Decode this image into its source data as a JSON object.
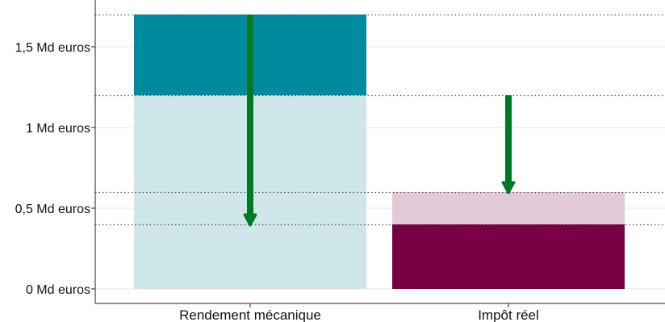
{
  "chart_data": {
    "type": "bar",
    "title": "",
    "xlabel": "",
    "ylabel": "",
    "ylim": [
      0,
      1.7
    ],
    "grid": "horizontal",
    "y_ticks": [
      {
        "value": 0,
        "label": "0 Md euros"
      },
      {
        "value": 0.5,
        "label": "0,5 Md euros"
      },
      {
        "value": 1,
        "label": "1 Md euros"
      },
      {
        "value": 1.5,
        "label": "1,5 Md euros"
      }
    ],
    "categories": [
      "Rendement mécanique",
      "Impôt réel"
    ],
    "bars": [
      {
        "category": "Rendement mécanique",
        "segments": [
          {
            "from": 0,
            "to": 1.2,
            "color": "#cfe7ea"
          },
          {
            "from": 1.2,
            "to": 1.7,
            "color": "#008a9e"
          }
        ]
      },
      {
        "category": "Impôt réel",
        "segments": [
          {
            "from": 0,
            "to": 0.4,
            "color": "#7a0045"
          },
          {
            "from": 0.4,
            "to": 0.6,
            "color": "#e3cad9"
          }
        ]
      }
    ],
    "reference_lines": [
      1.7,
      1.2,
      0.6,
      0.4
    ],
    "arrows": [
      {
        "category": "Rendement mécanique",
        "from": 1.7,
        "to": 0.4,
        "color": "#007a22"
      },
      {
        "category": "Impôt réel",
        "from": 1.2,
        "to": 0.6,
        "color": "#007a22"
      }
    ]
  }
}
